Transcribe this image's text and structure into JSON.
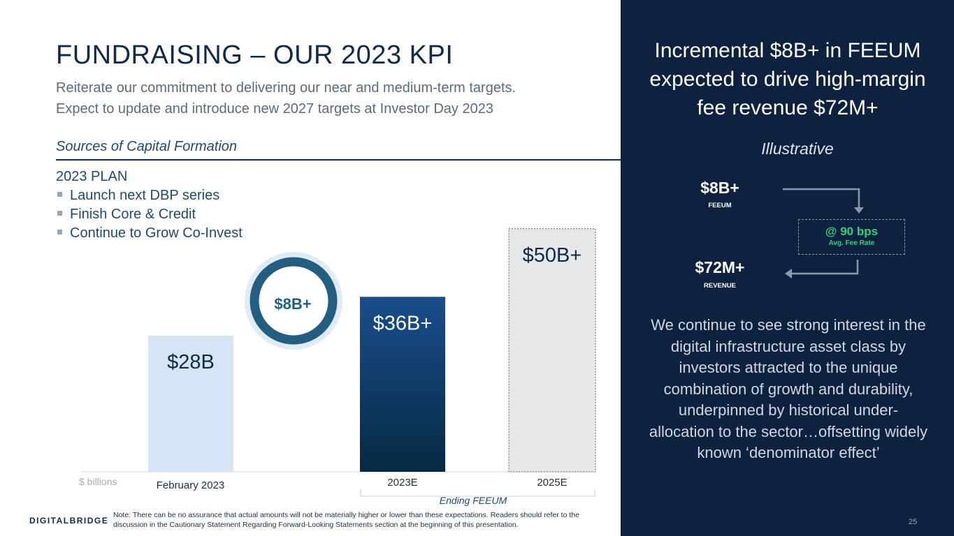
{
  "title": "FUNDRAISING – OUR 2023 KPI",
  "subtitle_lines": [
    "Reiterate our commitment to delivering our near and medium-term targets.",
    "Expect to update and introduce new 2027 targets at Investor Day 2023"
  ],
  "sources_label": "Sources of Capital Formation",
  "plan": {
    "heading": "2023 PLAN",
    "items": [
      "Launch next DBP series",
      "Finish Core & Credit",
      "Continue to Grow Co-Invest"
    ]
  },
  "chart_data": {
    "type": "bar",
    "unit_label": "$ billions",
    "categories": [
      "February 2023",
      "2023E",
      "2025E"
    ],
    "values": [
      28,
      36,
      50
    ],
    "data_labels": [
      "$28B",
      "$36B+",
      "$50B+"
    ],
    "increment": {
      "label": "$8B+",
      "value": 8
    },
    "group_label": "Ending FEEUM",
    "ylim": [
      0,
      56
    ],
    "colors": [
      "#d6e5f5",
      "#1a4d86",
      "#e6e7e9"
    ]
  },
  "note": "Note: There can be no assurance that actual amounts will not be materially higher or lower than these expectations.  Readers should refer to the discussion in the Cautionary Statement Regarding Forward-Looking Statements section at the beginning of this presentation.",
  "logo": "DIGITALBRIDGE",
  "panel": {
    "headline": "Incremental $8B+ in FEEUM expected to drive high-margin fee revenue $72M+",
    "illustrative": "Illustrative",
    "feeum_value": "$8B+",
    "feeum_label": "FEEUM",
    "rate_value": "@ 90 bps",
    "rate_label": "Avg. Fee Rate",
    "revenue_value": "$72M+",
    "revenue_label": "REVENUE",
    "body": "We continue to see strong interest in the digital infrastructure asset class by investors attracted to the unique combination of growth and durability, underpinned by historical under-allocation to the sector…offsetting widely known ‘denominator effect’"
  },
  "page_number": "25",
  "colors": {
    "navy": "#0e2240",
    "accent_green": "#2fd17c",
    "ring": "#215e82"
  }
}
